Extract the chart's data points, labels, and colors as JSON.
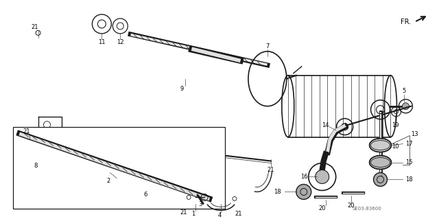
{
  "background_color": "#ffffff",
  "diagram_code": "SE03-83600",
  "dark": "#1a1a1a",
  "gray": "#666666",
  "lgray": "#aaaaaa"
}
